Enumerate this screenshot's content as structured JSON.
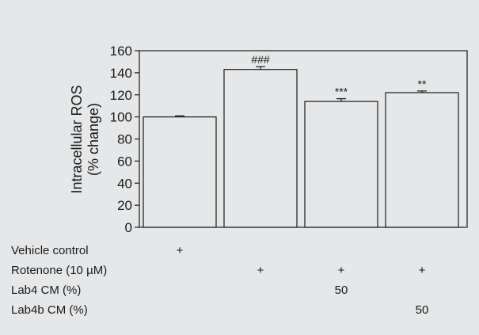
{
  "chart_data": {
    "type": "bar",
    "ylabel_lines": [
      "Intracellular ROS",
      "(% change)"
    ],
    "ylim": [
      0,
      160
    ],
    "yticks": [
      "0",
      "20",
      "40",
      "60",
      "80",
      "100",
      "120",
      "140",
      "160"
    ],
    "series": [
      {
        "values": [
          100,
          143,
          114,
          122
        ],
        "errors": [
          1,
          2.5,
          2.5,
          1.5
        ],
        "significance": [
          "",
          "###",
          "***",
          "**"
        ]
      }
    ],
    "conditions": [
      {
        "label": "Vehicle control",
        "cells": [
          "+",
          "",
          "",
          ""
        ]
      },
      {
        "label": "Rotenone (10 µM)",
        "cells": [
          "",
          "+",
          "+",
          "+"
        ]
      },
      {
        "label": "Lab4 CM (%)",
        "cells": [
          "",
          "",
          "50",
          ""
        ]
      },
      {
        "label": "Lab4b CM (%)",
        "cells": [
          "",
          "",
          "",
          "50"
        ]
      }
    ],
    "grid": false,
    "bar_fill": "#e6e7e8",
    "bar_stroke": "#1a1a1a",
    "background": "#e6e7e8"
  }
}
